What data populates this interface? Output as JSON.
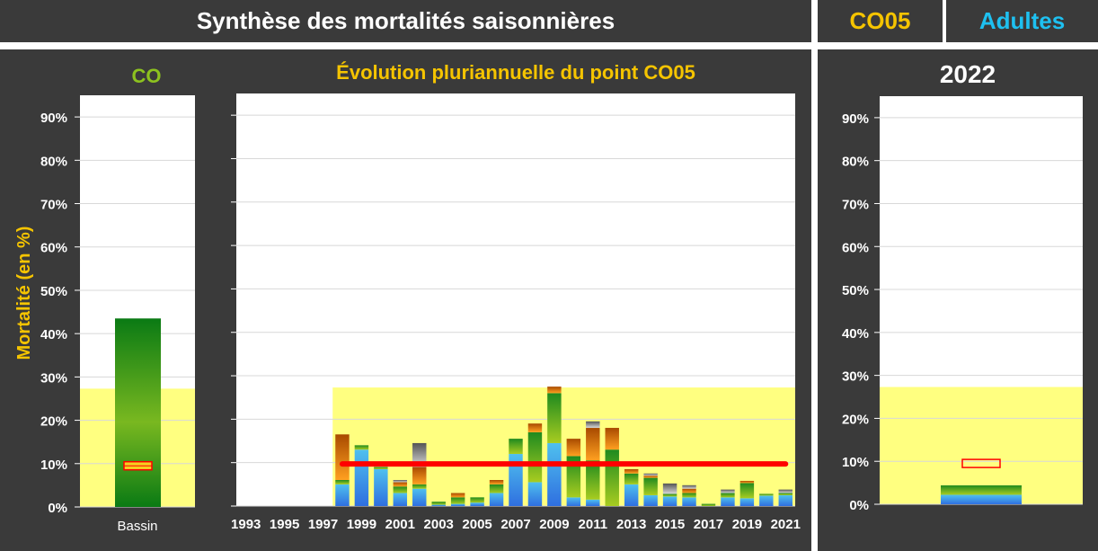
{
  "header": {
    "title": "Synthèse des mortalités saisonnières",
    "point": "CO05",
    "category": "Adultes"
  },
  "colors": {
    "panel_bg": "#3a3a3a",
    "accent_yellow": "#f5c400",
    "accent_cyan": "#1ec0f0",
    "accent_green": "#8dc21f",
    "reference_zone": "#ffff80",
    "mean_line": "#ff0000"
  },
  "chart_data": [
    {
      "type": "bar",
      "title": "CO",
      "ylabel": "Mortalité (en %)",
      "categories": [
        "Bassin"
      ],
      "values": [
        43.5
      ],
      "ylim": [
        0,
        95
      ],
      "yticks": [
        "0%",
        "10%",
        "20%",
        "30%",
        "40%",
        "50%",
        "60%",
        "70%",
        "80%",
        "90%"
      ],
      "reference_zone_max": 27.3,
      "marker_value": 9.5,
      "grid": true
    },
    {
      "type": "bar",
      "title": "Évolution pluriannuelle du point CO05",
      "stacked": true,
      "categories": [
        "1993",
        "1994",
        "1995",
        "1996",
        "1997",
        "1998",
        "1999",
        "2000",
        "2001",
        "2002",
        "2003",
        "2004",
        "2005",
        "2006",
        "2007",
        "2008",
        "2009",
        "2010",
        "2011",
        "2012",
        "2013",
        "2014",
        "2015",
        "2016",
        "2017",
        "2018",
        "2019",
        "2020",
        "2021"
      ],
      "xticks": [
        "1993",
        "1995",
        "1997",
        "1999",
        "2001",
        "2003",
        "2005",
        "2007",
        "2009",
        "2011",
        "2013",
        "2015",
        "2017",
        "2019",
        "2021"
      ],
      "totals": [
        0,
        0,
        0,
        0,
        0,
        16.5,
        14,
        9,
        6,
        14.5,
        1,
        3,
        2,
        6,
        15.5,
        19,
        27.5,
        15.5,
        19.5,
        18,
        8.5,
        7.5,
        5.2,
        4.8,
        0.5,
        3.8,
        5.8,
        2.8,
        3.8
      ],
      "series": [
        {
          "values": [
            0,
            0,
            0,
            0,
            0,
            5,
            13,
            8.5,
            3,
            4,
            0.3,
            0.5,
            0.8,
            3,
            12,
            5.5,
            14.5,
            2,
            1.5,
            0,
            5,
            2.5,
            2.2,
            2,
            0,
            2,
            1.8,
            2.4,
            2.5
          ]
        },
        {
          "values": [
            0,
            0,
            0,
            0,
            0,
            1,
            1,
            0.5,
            1.5,
            1,
            0.7,
            1.5,
            1.2,
            2,
            3.5,
            11.5,
            11.5,
            9.5,
            9,
            13,
            2.5,
            4,
            0.6,
            1,
            0.5,
            1,
            3.5,
            0.4,
            0.5
          ]
        },
        {
          "values": [
            0,
            0,
            0,
            0,
            0,
            10.5,
            0,
            0,
            1,
            4,
            0,
            1,
            0,
            1,
            0,
            2,
            1.5,
            4,
            7.5,
            5,
            1,
            0.5,
            0,
            1,
            0,
            0,
            0.5,
            0,
            0
          ]
        },
        {
          "values": [
            0,
            0,
            0,
            0,
            0,
            0,
            0,
            0,
            0.5,
            5.5,
            0,
            0,
            0,
            0,
            0,
            0,
            0,
            0,
            1.5,
            0,
            0,
            0.5,
            2.4,
            0.8,
            0,
            0.8,
            0,
            0,
            0.8
          ]
        }
      ],
      "ylim": [
        0,
        95
      ],
      "reference_zone_max": 27.3,
      "reference_zone_from": "1998",
      "mean_line": {
        "value": 9.7,
        "from": "1998",
        "to": "2021"
      },
      "grid": true
    },
    {
      "type": "bar",
      "title": "2022",
      "categories": [
        ""
      ],
      "series": [
        {
          "values": [
            2.2
          ]
        },
        {
          "values": [
            2.2
          ]
        }
      ],
      "ylim": [
        0,
        95
      ],
      "yticks": [
        "0%",
        "10%",
        "20%",
        "30%",
        "40%",
        "50%",
        "60%",
        "70%",
        "80%",
        "90%"
      ],
      "reference_zone_max": 27.3,
      "marker_value": 9.5,
      "grid": true
    }
  ]
}
